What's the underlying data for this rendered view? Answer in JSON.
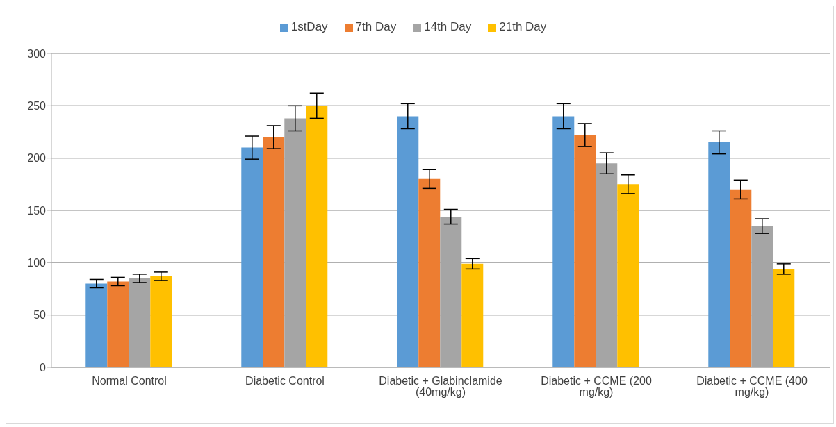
{
  "chart_data": {
    "type": "bar",
    "categories": [
      "Normal Control",
      "Diabetic Control",
      "Diabetic + Glabinclamide (40mg/kg)",
      "Diabetic + CCME (200 mg/kg)",
      "Diabetic + CCME (400 mg/kg)"
    ],
    "series": [
      {
        "name": "1stDay",
        "color": "#5b9bd5",
        "values": [
          80,
          210,
          240,
          240,
          215
        ],
        "errors": [
          4,
          11,
          12,
          12,
          11
        ]
      },
      {
        "name": "7th Day",
        "color": "#ed7d31",
        "values": [
          82,
          220,
          180,
          222,
          170
        ],
        "errors": [
          4,
          11,
          9,
          11,
          9
        ]
      },
      {
        "name": "14th Day",
        "color": "#a5a5a5",
        "values": [
          85,
          238,
          144,
          195,
          135
        ],
        "errors": [
          4,
          12,
          7,
          10,
          7
        ]
      },
      {
        "name": "21th Day",
        "color": "#ffc000",
        "values": [
          87,
          250,
          99,
          175,
          94
        ],
        "errors": [
          4,
          12,
          5,
          9,
          5
        ]
      }
    ],
    "ylim": [
      0,
      300
    ],
    "yticks": [
      0,
      50,
      100,
      150,
      200,
      250,
      300
    ],
    "grid": "y",
    "legend": "top"
  }
}
